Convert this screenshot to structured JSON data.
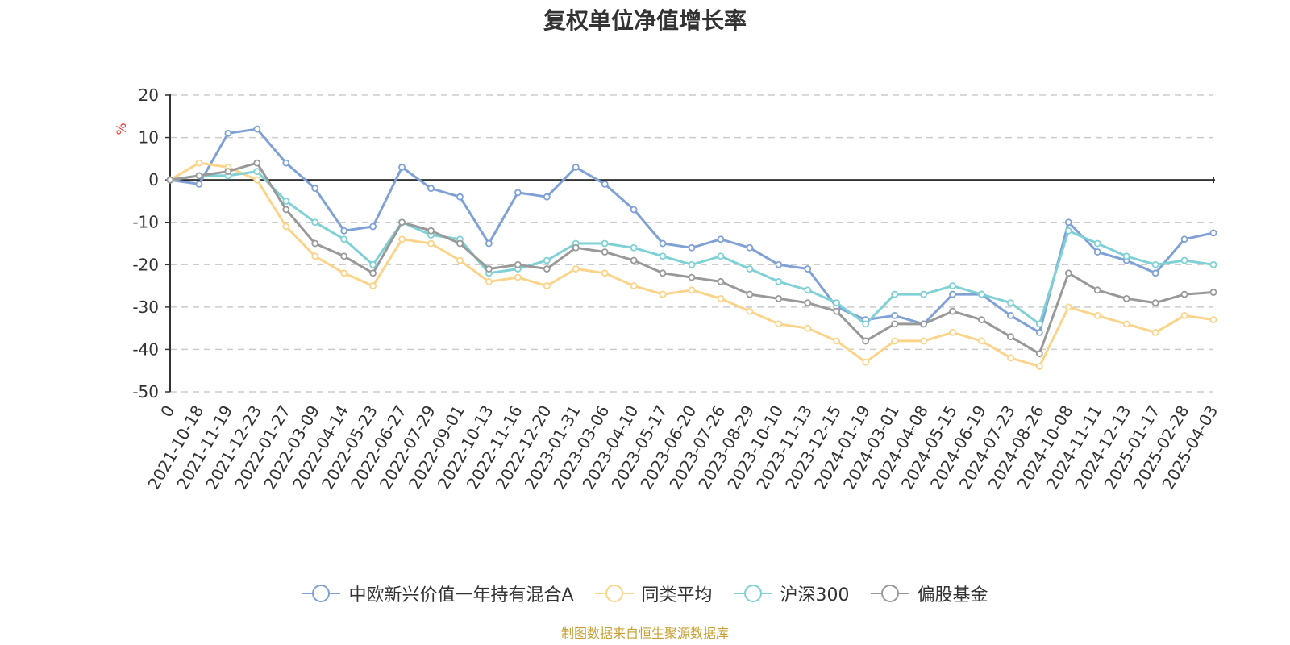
{
  "chart_data": {
    "type": "line",
    "title": "复权单位净值增长率",
    "ylabel": "%",
    "ylim": [
      -50,
      20
    ],
    "yticks": [
      20,
      10,
      0,
      -10,
      -20,
      -30,
      -40,
      -50
    ],
    "grid": true,
    "legend_position": "bottom",
    "x": [
      "0",
      "2021-10-18",
      "2021-11-19",
      "2021-12-23",
      "2022-01-27",
      "2022-03-09",
      "2022-04-14",
      "2022-05-23",
      "2022-06-27",
      "2022-07-29",
      "2022-09-01",
      "2022-10-13",
      "2022-11-16",
      "2022-12-20",
      "2023-01-31",
      "2023-03-06",
      "2023-04-10",
      "2023-05-17",
      "2023-06-20",
      "2023-07-26",
      "2023-08-29",
      "2023-10-10",
      "2023-11-13",
      "2023-12-15",
      "2024-01-19",
      "2024-03-01",
      "2024-04-08",
      "2024-05-15",
      "2024-06-19",
      "2024-07-23",
      "2024-08-26",
      "2024-10-08",
      "2024-11-11",
      "2024-12-13",
      "2025-01-17",
      "2025-02-28",
      "2025-04-03"
    ],
    "series": [
      {
        "name": "中欧新兴价值一年持有混合A",
        "color": "#7fa1d5",
        "values": [
          0,
          -1,
          11,
          12,
          4,
          -2,
          -12,
          -11,
          3,
          -2,
          -4,
          -15,
          -3,
          -4,
          3,
          -1,
          -7,
          -15,
          -16,
          -14,
          -16,
          -20,
          -21,
          -30,
          -33,
          -32,
          -34,
          -27,
          -27,
          -32,
          -36,
          -10,
          -17,
          -19,
          -22,
          -14,
          -12.5
        ]
      },
      {
        "name": "同类平均",
        "color": "#fbd48a",
        "values": [
          0,
          4,
          3,
          0,
          -11,
          -18,
          -22,
          -25,
          -14,
          -15,
          -19,
          -24,
          -23,
          -25,
          -21,
          -22,
          -25,
          -27,
          -26,
          -28,
          -31,
          -34,
          -35,
          -38,
          -43,
          -38,
          -38,
          -36,
          -38,
          -42,
          -44,
          -30,
          -32,
          -34,
          -36,
          -32,
          -33
        ]
      },
      {
        "name": "沪深300",
        "color": "#7fd1d5",
        "values": [
          0,
          1,
          1,
          2,
          -5,
          -10,
          -14,
          -20,
          -10,
          -13,
          -14,
          -22,
          -21,
          -19,
          -15,
          -15,
          -16,
          -18,
          -20,
          -18,
          -21,
          -24,
          -26,
          -29,
          -34,
          -27,
          -27,
          -25,
          -27,
          -29,
          -34,
          -12,
          -15,
          -18,
          -20,
          -19,
          -20
        ]
      },
      {
        "name": "偏股基金",
        "color": "#999999",
        "values": [
          0,
          1,
          2,
          4,
          -7,
          -15,
          -18,
          -22,
          -10,
          -12,
          -15,
          -21,
          -20,
          -21,
          -16,
          -17,
          -19,
          -22,
          -23,
          -24,
          -27,
          -28,
          -29,
          -31,
          -38,
          -34,
          -34,
          -31,
          -33,
          -37,
          -41,
          -22,
          -26,
          -28,
          -29,
          -27,
          -26.5
        ]
      }
    ]
  },
  "legend": [
    "中欧新兴价值一年持有混合A",
    "同类平均",
    "沪深300",
    "偏股基金"
  ],
  "source": "制图数据来自恒生聚源数据库"
}
